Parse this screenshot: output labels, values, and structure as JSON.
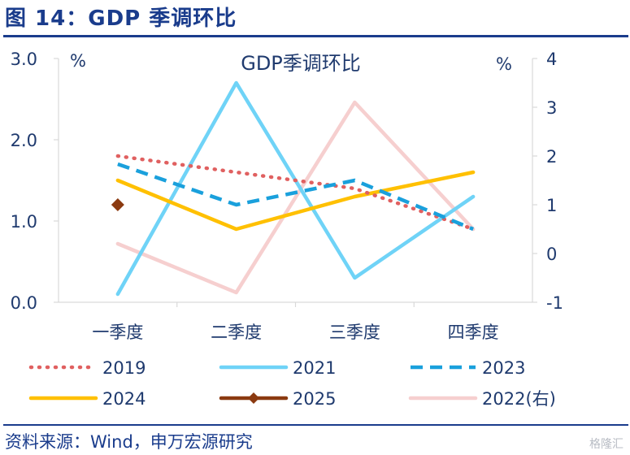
{
  "figure": {
    "title": "图 14：GDP 季调环比",
    "source": "资料来源：Wind，申万宏源研究",
    "watermark": "格隆汇"
  },
  "chart_data": {
    "type": "line",
    "title": "GDP季调环比",
    "y_left_unit": "%",
    "y_right_unit": "%",
    "ylim_left": [
      0,
      3
    ],
    "ylim_right": [
      -1,
      4
    ],
    "y_left_ticks": [
      "0.0",
      "1.0",
      "2.0",
      "3.0"
    ],
    "y_right_ticks": [
      "-1",
      "0",
      "1",
      "2",
      "3",
      "4"
    ],
    "categories": [
      "一季度",
      "二季度",
      "三季度",
      "四季度"
    ],
    "series": [
      {
        "name": "2019",
        "axis": "left",
        "values": [
          1.8,
          1.6,
          1.4,
          0.9
        ],
        "color": "#e06060",
        "style": "dotted"
      },
      {
        "name": "2021",
        "axis": "left",
        "values": [
          0.1,
          2.7,
          0.3,
          1.3
        ],
        "color": "#6fd3f7",
        "style": "solid"
      },
      {
        "name": "2023",
        "axis": "left",
        "values": [
          1.7,
          1.2,
          1.5,
          0.9
        ],
        "color": "#1aa0dc",
        "style": "dashed"
      },
      {
        "name": "2024",
        "axis": "left",
        "values": [
          1.5,
          0.9,
          1.3,
          1.6
        ],
        "color": "#ffc000",
        "style": "solid"
      },
      {
        "name": "2025",
        "axis": "left",
        "values": [
          1.2,
          null,
          null,
          null
        ],
        "color": "#8b3a10",
        "style": "marker"
      },
      {
        "name": "2022(右)",
        "axis": "right",
        "values": [
          0.2,
          -0.8,
          3.1,
          0.5
        ],
        "color": "#f6cfcf",
        "style": "solid"
      }
    ]
  }
}
